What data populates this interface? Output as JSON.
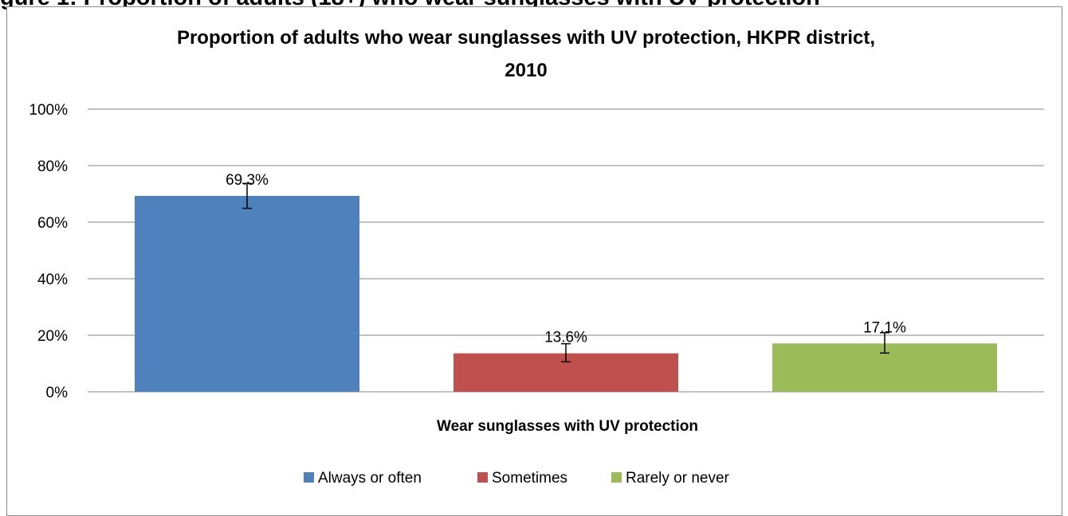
{
  "page_heading": "gure 1: Proportion of adults (18+) who wear sunglasses with UV protection",
  "chart_data": {
    "type": "bar",
    "title_lines": [
      "Proportion of adults who wear sunglasses with UV protection, HKPR district,",
      "2010"
    ],
    "xlabel": "Wear sunglasses with UV protection",
    "ylabel": "",
    "ylim": [
      0,
      100
    ],
    "yticks": [
      0,
      20,
      40,
      60,
      80,
      100
    ],
    "ytick_labels": [
      "0%",
      "20%",
      "40%",
      "60%",
      "80%",
      "100%"
    ],
    "grid": true,
    "legend_position": "bottom",
    "series": [
      {
        "name": "Always or often",
        "value": 69.3,
        "label": "69.3%",
        "error": [
          64.9,
          73.7
        ],
        "color": "#4F81BD"
      },
      {
        "name": "Sometimes",
        "value": 13.6,
        "label": "13.6%",
        "error": [
          10.6,
          17.0
        ],
        "color": "#C0504D"
      },
      {
        "name": "Rarely or never",
        "value": 17.1,
        "label": "17.1%",
        "error": [
          13.7,
          20.9
        ],
        "color": "#9BBB59"
      }
    ]
  }
}
